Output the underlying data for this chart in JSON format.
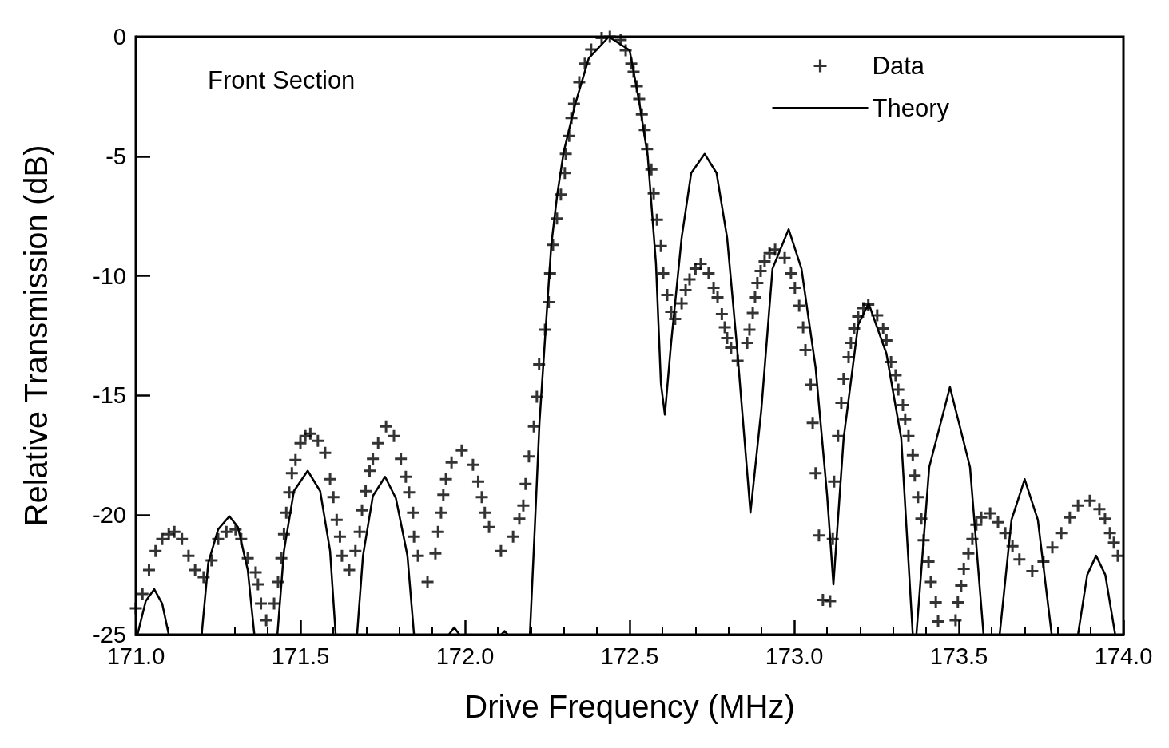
{
  "chart_data": {
    "type": "scatter",
    "xlabel": "Drive Frequency (MHz)",
    "ylabel": "Relative Transmission (dB)",
    "annotations": [
      "Front Section"
    ],
    "xlim": [
      171,
      174
    ],
    "xticks": [
      {
        "value": 171,
        "label": "171.0"
      },
      {
        "value": 171.5,
        "label": "171.5"
      },
      {
        "value": 172,
        "label": "172.0"
      },
      {
        "value": 172.5,
        "label": "172.5"
      },
      {
        "value": 173,
        "label": "173.0"
      },
      {
        "value": 173.5,
        "label": "173.5"
      },
      {
        "value": 174,
        "label": "174.0"
      }
    ],
    "ylim": [
      -25,
      0
    ],
    "yticks": [
      -25,
      -20,
      -15,
      -10,
      -5,
      0
    ],
    "grid": false,
    "legend": "top right",
    "marker": "cross",
    "series": [
      {
        "name": "Data",
        "color": "#000000",
        "x": [
          171.0,
          171.02,
          171.04,
          171.06,
          171.08,
          171.1,
          171.117,
          171.14,
          171.16,
          171.18,
          171.206,
          171.23,
          171.25,
          171.275,
          171.303,
          171.32,
          171.34,
          171.364,
          171.371,
          171.38,
          171.396,
          171.42,
          171.432,
          171.442,
          171.45,
          171.457,
          171.466,
          171.474,
          171.485,
          171.5,
          171.515,
          171.53,
          171.553,
          171.575,
          171.59,
          171.6,
          171.61,
          171.62,
          171.626,
          171.648,
          171.667,
          171.68,
          171.687,
          171.698,
          171.71,
          171.72,
          171.736,
          171.76,
          171.784,
          171.805,
          171.82,
          171.83,
          171.842,
          171.845,
          171.857,
          171.886,
          171.91,
          171.918,
          171.927,
          171.934,
          171.942,
          171.959,
          171.99,
          172.024,
          172.04,
          172.051,
          172.06,
          172.073,
          172.109,
          172.146,
          172.165,
          172.177,
          172.184,
          172.194,
          172.209,
          172.218,
          172.225,
          172.243,
          172.254,
          172.258,
          172.267,
          172.279,
          172.291,
          172.303,
          172.306,
          172.316,
          172.323,
          172.331,
          172.347,
          172.364,
          172.383,
          172.415,
          172.44,
          172.473,
          172.488,
          172.505,
          172.512,
          172.522,
          172.529,
          172.537,
          172.546,
          172.553,
          172.566,
          172.573,
          172.583,
          172.595,
          172.602,
          172.614,
          172.626,
          172.638,
          172.658,
          172.67,
          172.682,
          172.7,
          172.716,
          172.74,
          172.755,
          172.767,
          172.78,
          172.789,
          172.796,
          172.808,
          172.828,
          172.857,
          172.864,
          172.874,
          172.881,
          172.888,
          172.898,
          172.91,
          172.925,
          172.942,
          172.971,
          172.99,
          173.002,
          173.015,
          173.027,
          173.034,
          173.05,
          173.056,
          173.065,
          173.075,
          173.087,
          173.109,
          173.117,
          173.121,
          173.133,
          173.143,
          173.15,
          173.165,
          173.172,
          173.182,
          173.194,
          173.21,
          173.225,
          173.252,
          173.27,
          173.28,
          173.294,
          173.308,
          173.316,
          173.33,
          173.337,
          173.347,
          173.36,
          173.366,
          173.376,
          173.386,
          173.393,
          173.408,
          173.415,
          173.43,
          173.437,
          173.49,
          173.497,
          173.507,
          173.515,
          173.529,
          173.541,
          173.553,
          173.568,
          173.595,
          173.619,
          173.641,
          173.663,
          173.684,
          173.723,
          173.757,
          173.784,
          173.811,
          173.837,
          173.862,
          173.898,
          173.927,
          173.944,
          173.959,
          173.971,
          173.983
        ],
        "values": [
          -23.9,
          -23.3,
          -22.3,
          -21.5,
          -21.0,
          -20.8,
          -20.7,
          -21.0,
          -21.7,
          -22.3,
          -22.6,
          -21.9,
          -21.0,
          -20.7,
          -20.6,
          -21.0,
          -21.8,
          -22.4,
          -22.9,
          -23.7,
          -24.4,
          -23.7,
          -22.8,
          -21.8,
          -20.8,
          -19.9,
          -19.05,
          -18.25,
          -17.7,
          -17.0,
          -16.7,
          -16.6,
          -16.9,
          -17.4,
          -18.5,
          -19.25,
          -20.2,
          -20.9,
          -21.7,
          -22.3,
          -21.5,
          -20.7,
          -19.8,
          -19.0,
          -18.15,
          -17.65,
          -17.0,
          -16.3,
          -16.7,
          -17.65,
          -18.4,
          -19.05,
          -19.9,
          -20.9,
          -21.7,
          -22.8,
          -21.6,
          -20.7,
          -19.9,
          -19.15,
          -18.5,
          -17.8,
          -17.3,
          -17.9,
          -18.6,
          -19.25,
          -19.9,
          -20.5,
          -21.5,
          -20.9,
          -20.15,
          -19.6,
          -18.7,
          -17.55,
          -16.3,
          -15.05,
          -13.7,
          -12.25,
          -11.1,
          -9.9,
          -8.7,
          -7.6,
          -6.6,
          -5.7,
          -4.9,
          -4.15,
          -3.4,
          -2.8,
          -1.9,
          -1.13,
          -0.53,
          -0.05,
          0.0,
          -0.13,
          -0.57,
          -1.13,
          -1.47,
          -2.07,
          -2.6,
          -3.25,
          -3.9,
          -4.7,
          -5.55,
          -6.55,
          -7.65,
          -8.75,
          -9.9,
          -10.8,
          -11.5,
          -11.8,
          -11.15,
          -10.6,
          -10.15,
          -9.7,
          -9.5,
          -9.9,
          -10.5,
          -10.9,
          -11.6,
          -12.15,
          -12.6,
          -13.0,
          -13.55,
          -12.8,
          -12.25,
          -11.55,
          -10.9,
          -10.3,
          -9.8,
          -9.4,
          -9.05,
          -8.9,
          -9.25,
          -9.9,
          -10.5,
          -11.25,
          -12.15,
          -13.1,
          -14.55,
          -16.15,
          -18.25,
          -20.85,
          -23.55,
          -23.6,
          -21.0,
          -18.6,
          -16.7,
          -15.3,
          -14.3,
          -13.4,
          -12.8,
          -12.2,
          -11.7,
          -11.35,
          -11.2,
          -11.65,
          -12.2,
          -12.7,
          -13.6,
          -14.15,
          -14.75,
          -15.4,
          -16.0,
          -16.7,
          -17.5,
          -18.35,
          -19.25,
          -20.15,
          -21.05,
          -21.95,
          -22.8,
          -23.65,
          -24.45,
          -24.4,
          -23.65,
          -22.95,
          -22.25,
          -21.6,
          -21.0,
          -20.4,
          -20.1,
          -19.93,
          -20.3,
          -20.75,
          -21.3,
          -21.85,
          -22.35,
          -21.95,
          -21.35,
          -20.75,
          -20.1,
          -19.6,
          -19.4,
          -19.75,
          -20.15,
          -20.75,
          -21.15,
          -21.7
        ]
      },
      {
        "name": "Theory",
        "type": "line",
        "color": "#000000",
        "marker": "none",
        "x": [
          171.005,
          171.03,
          171.056,
          171.08,
          171.1,
          171.15,
          171.2,
          171.22,
          171.25,
          171.284,
          171.31,
          171.34,
          171.36,
          171.4,
          171.43,
          171.45,
          171.48,
          171.522,
          171.56,
          171.59,
          171.607,
          171.64,
          171.672,
          171.69,
          171.72,
          171.757,
          171.79,
          171.825,
          171.845,
          171.9,
          171.951,
          171.967,
          171.983,
          172.05,
          172.11,
          172.12,
          172.13,
          172.16,
          172.197,
          172.212,
          172.226,
          172.25,
          172.262,
          172.28,
          172.3,
          172.335,
          172.376,
          172.437,
          172.5,
          172.53,
          172.555,
          172.58,
          172.595,
          172.607,
          172.626,
          172.658,
          172.687,
          172.728,
          172.764,
          172.796,
          172.825,
          172.867,
          172.9,
          172.934,
          172.983,
          173.022,
          173.065,
          173.1,
          173.119,
          173.15,
          173.194,
          173.226,
          173.28,
          173.325,
          173.36,
          173.365,
          173.371,
          173.41,
          173.473,
          173.534,
          173.575,
          173.6,
          173.624,
          173.66,
          173.7,
          173.74,
          173.782,
          173.82,
          173.862,
          173.89,
          173.917,
          173.945,
          173.975
        ],
        "values": [
          -25,
          -23.6,
          -23.1,
          -23.7,
          -25,
          null,
          -25,
          -22.0,
          -20.6,
          -20.05,
          -20.5,
          -22.3,
          -25,
          null,
          -25,
          -21.5,
          -19.0,
          -18.15,
          -19.0,
          -21.5,
          -25,
          null,
          -25,
          -21.7,
          -19.2,
          -18.4,
          -19.3,
          -21.7,
          -25,
          null,
          -25,
          -24.7,
          -25,
          null,
          -25,
          -24.85,
          -25,
          null,
          -25,
          -20.5,
          -16.15,
          -11.15,
          -8.7,
          -6.6,
          -4.8,
          -2.8,
          -0.9,
          0,
          -0.57,
          -2.8,
          -5.0,
          -9.5,
          -14.5,
          -15.8,
          -12.8,
          -8.4,
          -5.7,
          -4.9,
          -5.7,
          -8.4,
          -12.8,
          -19.9,
          -15.6,
          -9.7,
          -8.05,
          -9.7,
          -13.85,
          -19.2,
          -22.9,
          -16.8,
          -12.05,
          -11.15,
          -13.25,
          -16.8,
          -25,
          null,
          -25,
          -18.0,
          -14.65,
          -18.0,
          -25,
          null,
          -25,
          -20.2,
          -18.5,
          -20.2,
          -25,
          null,
          -25,
          -22.5,
          -21.7,
          -22.5,
          -25
        ]
      }
    ]
  }
}
